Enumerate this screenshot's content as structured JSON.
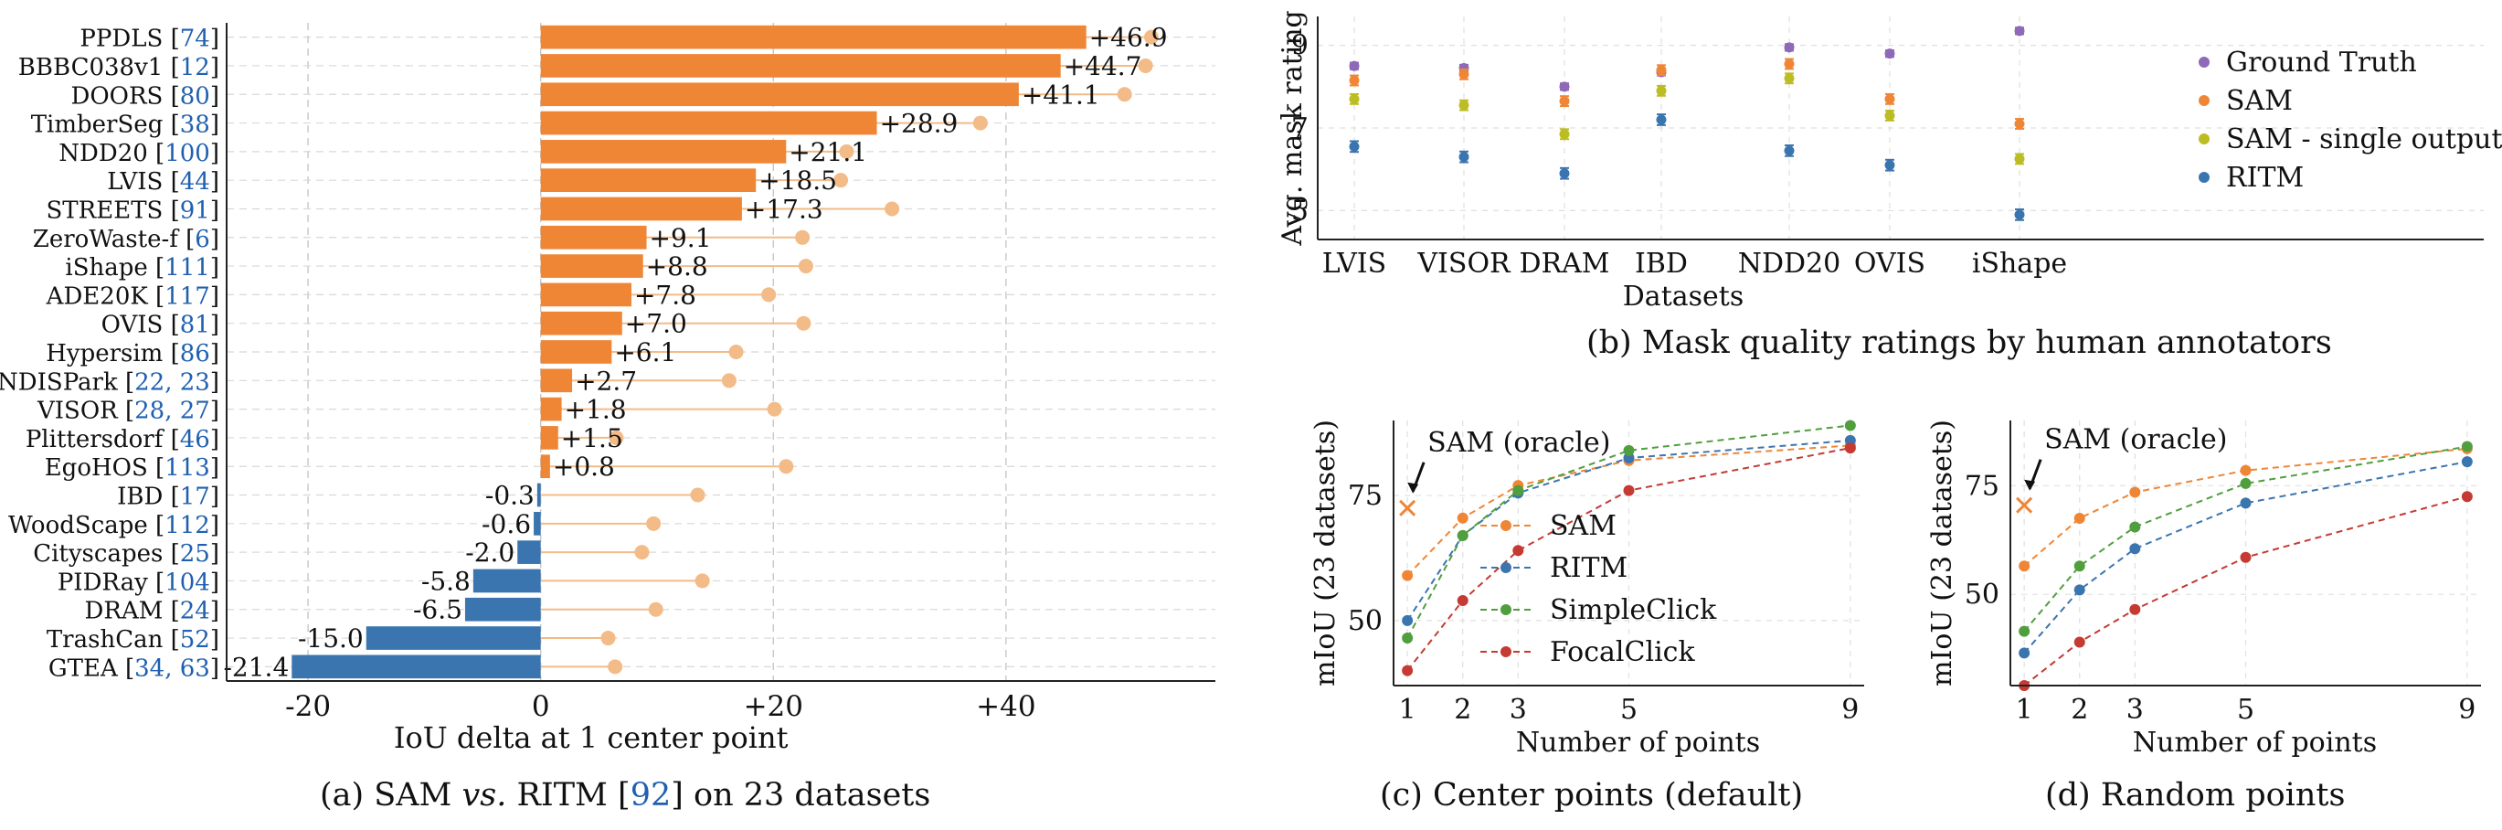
{
  "colors": {
    "orange": "#ef8636",
    "blue": "#3b75af",
    "green": "#519e3e",
    "red": "#c53a32",
    "purple": "#8d69b8",
    "olive": "#bcbd22",
    "cite": "#2060b0",
    "lollipop": "#f3bb87"
  },
  "captions": {
    "a": {
      "pre": "(a) SAM ",
      "vs": "vs.",
      "mid": " RITM [",
      "ref": "92",
      "post": "] on 23 datasets"
    },
    "b": "(b) Mask quality ratings by human annotators",
    "c": "(c) Center points (default)",
    "d": "(d) Random points"
  },
  "chart_data": [
    {
      "type": "bar",
      "orientation": "horizontal",
      "xlabel": "IoU delta at 1 center point",
      "xticks": [
        "-20",
        "0",
        "+20",
        "+40"
      ],
      "xlim": [
        -27,
        58
      ],
      "grid": true,
      "bars": [
        {
          "name": "PPDLS",
          "ref": "74",
          "delta": 46.9,
          "label": "+46.9",
          "oracle": 52.5
        },
        {
          "name": "BBBC038v1",
          "ref": "12",
          "delta": 44.7,
          "label": "+44.7",
          "oracle": 52.0
        },
        {
          "name": "DOORS",
          "ref": "80",
          "delta": 41.1,
          "label": "+41.1",
          "oracle": 50.2
        },
        {
          "name": "TimberSeg",
          "ref": "38",
          "delta": 28.9,
          "label": "+28.9",
          "oracle": 37.8
        },
        {
          "name": "NDD20",
          "ref": "100",
          "delta": 21.1,
          "label": "+21.1",
          "oracle": 26.3
        },
        {
          "name": "LVIS",
          "ref": "44",
          "delta": 18.5,
          "label": "+18.5",
          "oracle": 25.8
        },
        {
          "name": "STREETS",
          "ref": "91",
          "delta": 17.3,
          "label": "+17.3",
          "oracle": 30.2
        },
        {
          "name": "ZeroWaste-f",
          "ref": "6",
          "delta": 9.1,
          "label": "+9.1",
          "oracle": 22.5
        },
        {
          "name": "iShape",
          "ref": "111",
          "delta": 8.8,
          "label": "+8.8",
          "oracle": 22.8
        },
        {
          "name": "ADE20K",
          "ref": "117",
          "delta": 7.8,
          "label": "+7.8",
          "oracle": 19.6
        },
        {
          "name": "OVIS",
          "ref": "81",
          "delta": 7.0,
          "label": "+7.0",
          "oracle": 22.6
        },
        {
          "name": "Hypersim",
          "ref": "86",
          "delta": 6.1,
          "label": "+6.1",
          "oracle": 16.8
        },
        {
          "name": "NDISPark",
          "ref": "22, 23",
          "delta": 2.7,
          "label": "+2.7",
          "oracle": 16.2
        },
        {
          "name": "VISOR",
          "ref": "28, 27",
          "delta": 1.8,
          "label": "+1.8",
          "oracle": 20.1
        },
        {
          "name": "Plittersdorf",
          "ref": "46",
          "delta": 1.5,
          "label": "+1.5",
          "oracle": 6.5
        },
        {
          "name": "EgoHOS",
          "ref": "113",
          "delta": 0.8,
          "label": "+0.8",
          "oracle": 21.1
        },
        {
          "name": "IBD",
          "ref": "17",
          "delta": -0.3,
          "label": "-0.3",
          "oracle": 13.5
        },
        {
          "name": "WoodScape",
          "ref": "112",
          "delta": -0.6,
          "label": "-0.6",
          "oracle": 9.7
        },
        {
          "name": "Cityscapes",
          "ref": "25",
          "delta": -2.0,
          "label": "-2.0",
          "oracle": 8.7
        },
        {
          "name": "PIDRay",
          "ref": "104",
          "delta": -5.8,
          "label": "-5.8",
          "oracle": 13.9
        },
        {
          "name": "DRAM",
          "ref": "24",
          "delta": -6.5,
          "label": "-6.5",
          "oracle": 9.9
        },
        {
          "name": "TrashCan",
          "ref": "52",
          "delta": -15.0,
          "label": "-15.0",
          "oracle": 5.8
        },
        {
          "name": "GTEA",
          "ref": "34, 63",
          "delta": -21.4,
          "label": "-21.4",
          "oracle": 6.4
        }
      ]
    },
    {
      "type": "scatter",
      "xlabel": "Datasets",
      "ylabel": "Avg. mask rating",
      "ylim": [
        4.3,
        9.7
      ],
      "yticks": [
        5,
        7,
        9
      ],
      "categories": [
        "LVIS",
        "VISOR",
        "DRAM",
        "IBD",
        "NDD20",
        "OVIS",
        "iShape"
      ],
      "legend_position": "right",
      "series": [
        {
          "name": "Ground Truth",
          "color": "#8d69b8",
          "values": [
            8.5,
            8.45,
            8.0,
            8.35,
            8.95,
            8.8,
            9.35
          ],
          "err": 0.08
        },
        {
          "name": "SAM",
          "color": "#ef8636",
          "values": [
            8.15,
            8.3,
            7.65,
            8.4,
            8.55,
            7.7,
            7.1
          ],
          "err": 0.12
        },
        {
          "name": "SAM - single output",
          "color": "#bcbd22",
          "values": [
            7.7,
            7.55,
            6.85,
            7.9,
            8.2,
            7.3,
            6.25
          ],
          "err": 0.12
        },
        {
          "name": "RITM",
          "color": "#3b75af",
          "values": [
            6.55,
            6.3,
            5.9,
            7.2,
            6.45,
            6.1,
            4.9
          ],
          "err": 0.13
        }
      ]
    },
    {
      "type": "line",
      "xlabel": "Number of points",
      "ylabel": "mIoU (23 datasets)",
      "x": [
        1,
        2,
        3,
        5,
        9
      ],
      "xticks": [
        1,
        2,
        3,
        5,
        9
      ],
      "yticks": [
        50,
        75
      ],
      "ylim": [
        37,
        90
      ],
      "annotation": {
        "text": "SAM (oracle)",
        "x": 1,
        "y": 72.5
      },
      "legend": [
        "SAM",
        "RITM",
        "SimpleClick",
        "FocalClick"
      ],
      "series": [
        {
          "name": "SAM",
          "color": "#ef8636",
          "values": [
            59,
            70.5,
            77,
            82,
            85
          ]
        },
        {
          "name": "RITM",
          "color": "#3b75af",
          "values": [
            50,
            67,
            75.5,
            82.5,
            86
          ]
        },
        {
          "name": "SimpleClick",
          "color": "#519e3e",
          "values": [
            46.5,
            67,
            76,
            84,
            89
          ]
        },
        {
          "name": "FocalClick",
          "color": "#c53a32",
          "values": [
            40,
            54,
            64,
            76,
            84.5
          ]
        }
      ]
    },
    {
      "type": "line",
      "xlabel": "Number of points",
      "ylabel": "mIoU (23 datasets)",
      "x": [
        1,
        2,
        3,
        5,
        9
      ],
      "xticks": [
        1,
        2,
        3,
        5,
        9
      ],
      "yticks": [
        50,
        75
      ],
      "ylim": [
        29,
        90
      ],
      "annotation": {
        "text": "SAM (oracle)",
        "x": 1,
        "y": 70.5
      },
      "series": [
        {
          "name": "SAM",
          "color": "#ef8636",
          "values": [
            56.5,
            67.5,
            73.5,
            78.5,
            83.5
          ]
        },
        {
          "name": "RITM",
          "color": "#3b75af",
          "values": [
            36.5,
            51,
            60.5,
            71,
            80.5
          ]
        },
        {
          "name": "SimpleClick",
          "color": "#519e3e",
          "values": [
            41.5,
            56.5,
            65.5,
            75.5,
            84
          ]
        },
        {
          "name": "FocalClick",
          "color": "#c53a32",
          "values": [
            29,
            39,
            46.5,
            58.5,
            72.5
          ]
        }
      ]
    }
  ]
}
